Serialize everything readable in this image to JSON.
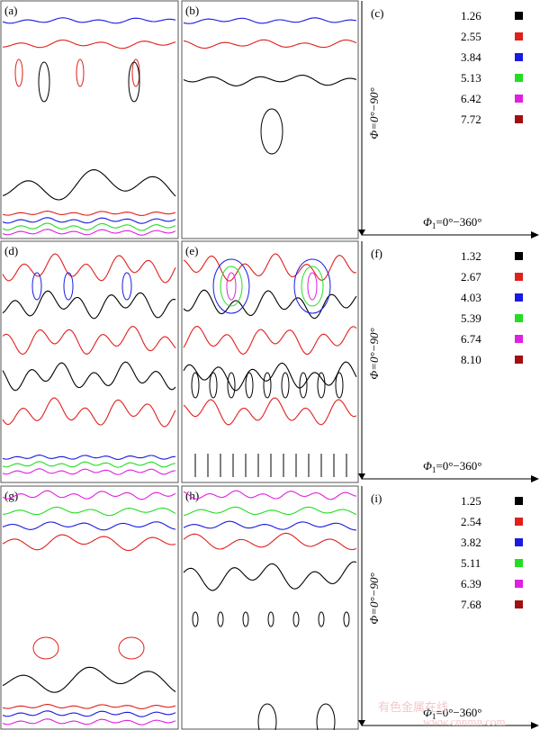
{
  "rows": [
    {
      "panels": [
        "(a)",
        "(b)",
        "(c)"
      ],
      "legend": [
        "1.26",
        "2.55",
        "3.84",
        "5.13",
        "6.42",
        "7.72"
      ]
    },
    {
      "panels": [
        "(d)",
        "(e)",
        "(f)"
      ],
      "legend": [
        "1.32",
        "2.67",
        "4.03",
        "5.39",
        "6.74",
        "8.10"
      ]
    },
    {
      "panels": [
        "(g)",
        "(h)",
        "(i)"
      ],
      "legend": [
        "1.25",
        "2.54",
        "3.82",
        "5.11",
        "6.39",
        "7.68"
      ]
    }
  ],
  "legend_colors": [
    "#000000",
    "#e0201b",
    "#1a1ae0",
    "#22dd22",
    "#e020e0",
    "#a01010"
  ],
  "phi_label": "Φ=0°−90°",
  "phi1_label": {
    "symbol": "Φ",
    "sub": "1",
    "range": "=0°−360°"
  },
  "watermark": {
    "name": "有色金属在线",
    "url": "www.cnnmn.com"
  }
}
